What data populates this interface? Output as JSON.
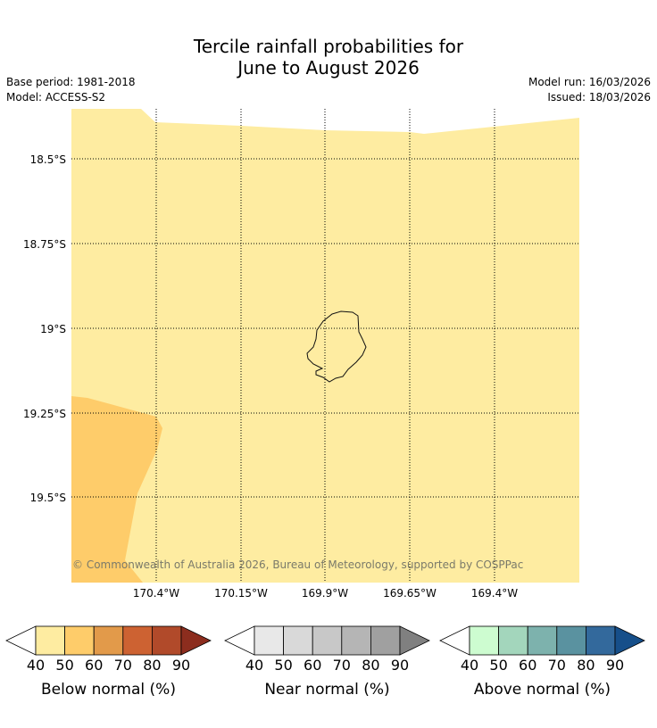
{
  "title_line1": "Tercile rainfall probabilities for",
  "title_line2": "June to August 2026",
  "meta": {
    "base_period": "Base period: 1981-2018",
    "model": "Model: ACCESS-S2",
    "model_run": "Model run: 16/03/2026",
    "issued": "Issued: 18/03/2026"
  },
  "map": {
    "lat_labels": [
      "18.5°S",
      "18.75°S",
      "19°S",
      "19.25°S",
      "19.5°S"
    ],
    "lon_labels": [
      "170.4°W",
      "170.15°W",
      "169.9°W",
      "169.65°W",
      "169.4°W"
    ],
    "copyright": "© Commonwealth of Australia 2026, Bureau of Meteorology, supported by COSPPac",
    "colors": {
      "below_50": "#feeca1",
      "below_60": "#fecc6a"
    }
  },
  "legends": [
    {
      "label": "Below normal (%)",
      "ticks": [
        "40",
        "50",
        "60",
        "70",
        "80",
        "90"
      ],
      "colors": [
        "#ffffff",
        "#feeca1",
        "#fecc6a",
        "#e29a4a",
        "#cd6232",
        "#b14a2a",
        "#8c2d1e"
      ]
    },
    {
      "label": "Near normal (%)",
      "ticks": [
        "40",
        "50",
        "60",
        "70",
        "80",
        "90"
      ],
      "colors": [
        "#ffffff",
        "#e8e8e8",
        "#d9d9d9",
        "#c8c8c8",
        "#b5b5b5",
        "#a0a0a0",
        "#808080"
      ]
    },
    {
      "label": "Above normal (%)",
      "ticks": [
        "40",
        "50",
        "60",
        "70",
        "80",
        "90"
      ],
      "colors": [
        "#ffffff",
        "#cdfcd0",
        "#a3d6bc",
        "#7db2ad",
        "#5a92a0",
        "#33699c",
        "#164f8a"
      ]
    }
  ]
}
